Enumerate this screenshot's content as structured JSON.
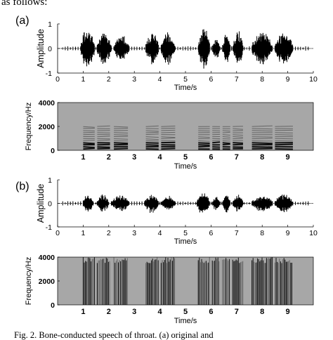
{
  "header_text": "as follows:",
  "caption": "Fig. 2. Bone-conducted speech of throat. (a) original and",
  "panels": [
    {
      "label": "(a)",
      "waveform": {
        "type": "waveform",
        "ylabel": "Amplitude",
        "xlabel": "Time/s",
        "xlim": [
          0,
          10
        ],
        "ylim": [
          -1,
          1
        ],
        "xticks": [
          "0",
          "1",
          "2",
          "3",
          "4",
          "5",
          "6",
          "7",
          "8",
          "9",
          "10"
        ],
        "yticks": [
          "1",
          "0",
          "-1"
        ],
        "bursts": [
          [
            0.9,
            1.45,
            0.9
          ],
          [
            1.55,
            2.1,
            0.75
          ],
          [
            2.2,
            2.8,
            0.6
          ],
          [
            3.45,
            3.95,
            0.75
          ],
          [
            4.05,
            4.6,
            0.7
          ],
          [
            5.5,
            5.95,
            0.95
          ],
          [
            6.05,
            6.35,
            0.5
          ],
          [
            6.45,
            6.75,
            0.7
          ],
          [
            6.85,
            7.25,
            0.75
          ],
          [
            7.6,
            8.4,
            0.75
          ],
          [
            8.5,
            9.2,
            0.75
          ]
        ]
      },
      "spectrogram": {
        "type": "heatmap",
        "ylabel": "Frequency/Hz",
        "xlabel": "Time/s",
        "yticks": [
          "4000",
          "2000",
          "0"
        ],
        "xticks": [
          "1",
          "2",
          "3",
          "4",
          "5",
          "6",
          "7",
          "8",
          "9"
        ],
        "xlim": [
          0,
          10
        ],
        "ylim": [
          0,
          4000
        ],
        "style": "harmonic-bands-low"
      }
    },
    {
      "label": "(b)",
      "waveform": {
        "type": "waveform",
        "ylabel": "Amplitude",
        "xlabel": "Time/s",
        "xlim": [
          0,
          10
        ],
        "ylim": [
          -1,
          1
        ],
        "xticks": [
          "0",
          "1",
          "2",
          "3",
          "4",
          "5",
          "6",
          "7",
          "8",
          "9",
          "10"
        ],
        "yticks": [
          "1",
          "0",
          "-1"
        ],
        "bursts": [
          [
            1.0,
            1.4,
            0.45
          ],
          [
            1.55,
            2.0,
            0.45
          ],
          [
            2.1,
            2.8,
            0.4
          ],
          [
            3.4,
            3.95,
            0.45
          ],
          [
            4.05,
            4.6,
            0.35
          ],
          [
            5.45,
            5.95,
            0.55
          ],
          [
            6.05,
            6.35,
            0.35
          ],
          [
            6.45,
            6.75,
            0.45
          ],
          [
            6.85,
            7.25,
            0.4
          ],
          [
            7.6,
            8.4,
            0.4
          ],
          [
            8.5,
            9.2,
            0.45
          ]
        ]
      },
      "spectrogram": {
        "type": "heatmap",
        "ylabel": "Frequency/Hz",
        "xlabel": "Time/s",
        "yticks": [
          "4000",
          "2000",
          "0"
        ],
        "xticks": [
          "1",
          "2",
          "3",
          "4",
          "5",
          "6",
          "7",
          "8",
          "9"
        ],
        "xlim": [
          0,
          10
        ],
        "ylim": [
          0,
          4000
        ],
        "style": "broadband-full"
      }
    }
  ],
  "colors": {
    "background": "#ffffff",
    "spectrogram_bg": "#a7a7a7",
    "ink": "#000000"
  }
}
